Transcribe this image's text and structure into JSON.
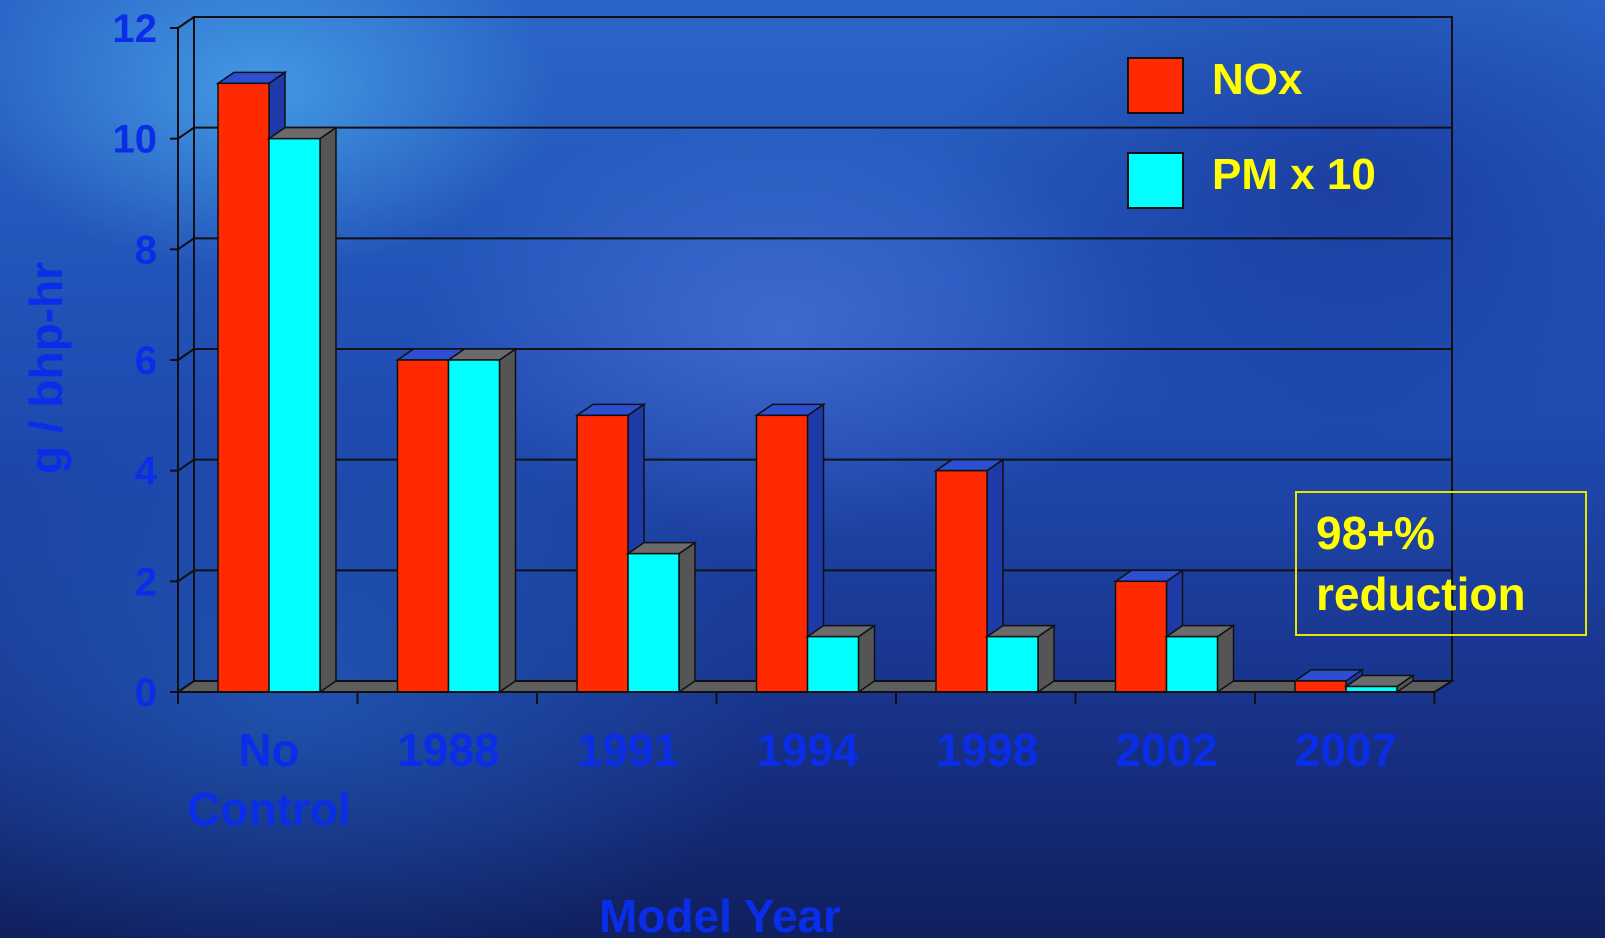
{
  "chart_data": {
    "type": "bar",
    "ylabel": "g / bhp-hr",
    "xlabel": "Model Year",
    "ylim": [
      0,
      12
    ],
    "yticks": [
      "0",
      "2",
      "4",
      "6",
      "8",
      "10",
      "12"
    ],
    "categories": [
      [
        "No",
        "Control"
      ],
      [
        "1988"
      ],
      [
        "1991"
      ],
      [
        "1994"
      ],
      [
        "1998"
      ],
      [
        "2002"
      ],
      [
        "2007"
      ]
    ],
    "series": [
      {
        "name": "NOx",
        "values": [
          11,
          6,
          5,
          5,
          4,
          2,
          0.2
        ],
        "color": "#ff2a00"
      },
      {
        "name": "PM x 10",
        "values": [
          10,
          6,
          2.5,
          1,
          1,
          1,
          0.1
        ],
        "color": "#00ffff"
      }
    ],
    "grid": true,
    "legend_position": "top-right",
    "annotation": [
      "98+%",
      "reduction"
    ],
    "colors": {
      "label": "#0a2ee8",
      "legend_text": "#ffff00",
      "grid": "#101010"
    }
  }
}
